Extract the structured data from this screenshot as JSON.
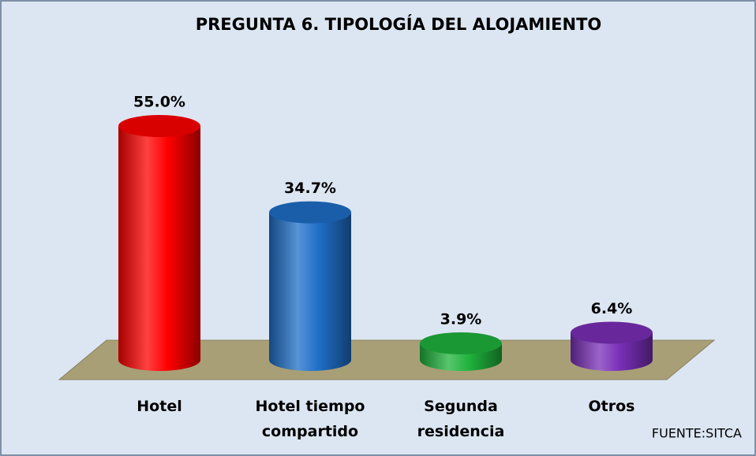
{
  "chart_data": {
    "type": "bar3d",
    "title": "PREGUNTA 6. TIPOLOGÍA DEL ALOJAMIENTO",
    "categories": [
      "Hotel",
      "Hotel tiempo compartido",
      "Segunda residencia",
      "Otros"
    ],
    "values": [
      55.0,
      34.7,
      3.9,
      6.4
    ],
    "value_labels": [
      "55.0%",
      "34.7%",
      "3.9%",
      "6.4%"
    ],
    "colors": [
      "#ff0000",
      "#1f6fc8",
      "#1fb33c",
      "#7a2fb8"
    ],
    "source": "FUENTE:SITCA"
  }
}
